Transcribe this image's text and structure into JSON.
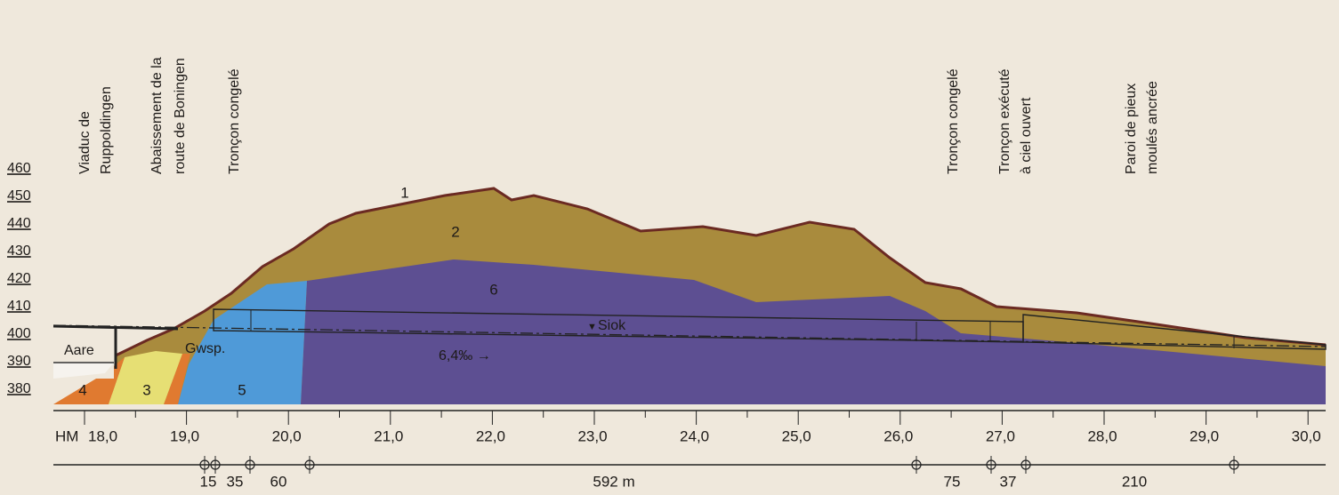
{
  "elevation_labels": [
    "460",
    "450",
    "440",
    "430",
    "420",
    "410",
    "400",
    "390",
    "380"
  ],
  "annotations": [
    [
      "Viaduc de",
      "Ruppoldingen"
    ],
    [
      "Abaissement de la",
      "route de Boningen"
    ],
    [
      "Tronçon congelé"
    ],
    [
      "Tronçon congelé"
    ],
    [
      "Tronçon exécuté",
      "à ciel ouvert"
    ],
    [
      "Paroi de pieux",
      "moulés ancrée"
    ]
  ],
  "layer_labels": [
    "1",
    "2",
    "6",
    "3",
    "4",
    "5"
  ],
  "water_labels": [
    "Aare",
    "Gwsp.",
    "Siok"
  ],
  "gradient": "6,4‰ →",
  "axis": {
    "prefix": "HM",
    "ticks": [
      "18,0",
      "19,0",
      "20,0",
      "21,0",
      "22,0",
      "23,0",
      "24,0",
      "25,0",
      "26,0",
      "27,0",
      "28,0",
      "29,0",
      "30,0"
    ]
  },
  "distances": [
    "15",
    "35",
    "60",
    "592 m",
    "75",
    "37",
    "210"
  ]
}
